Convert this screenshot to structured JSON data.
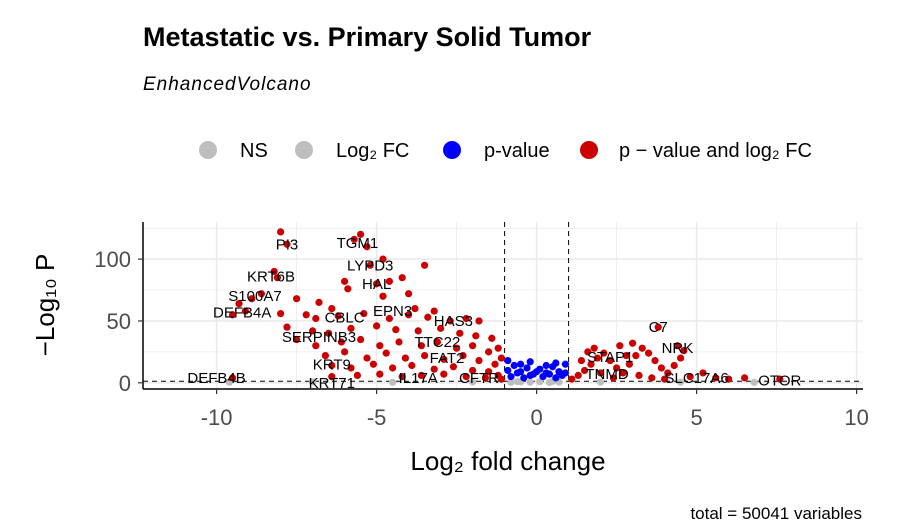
{
  "chart_data": {
    "type": "scatter",
    "title": "Metastatic vs. Primary Solid Tumor",
    "subtitle": "EnhancedVolcano",
    "caption": "total = 50041 variables",
    "xlabel": "Log₂ fold change",
    "ylabel": "−Log₁₀ P",
    "xlim": [
      -12.3,
      10.2
    ],
    "ylim": [
      -5,
      130
    ],
    "x_ticks": [
      "-10",
      "-5",
      "0",
      "5",
      "10"
    ],
    "y_ticks": [
      "0",
      "50",
      "100"
    ],
    "grid": true,
    "fc_cutoff": 1,
    "p_cutoff_line": 1.3,
    "legend_position": "top",
    "legend": [
      {
        "label": "NS",
        "color": "#bebebe"
      },
      {
        "label": "Log₂ FC",
        "color": "#bebebe"
      },
      {
        "label": "p-value",
        "color": "#0000ff"
      },
      {
        "label": "p − value and log₂ FC",
        "color": "#cc0000"
      }
    ],
    "labeled_genes": [
      {
        "name": "PI3",
        "x": -7.8,
        "y": 112
      },
      {
        "name": "TGM1",
        "x": -5.6,
        "y": 113
      },
      {
        "name": "LYPD3",
        "x": -5.2,
        "y": 95
      },
      {
        "name": "KRT6B",
        "x": -8.3,
        "y": 86
      },
      {
        "name": "HAL",
        "x": -5.0,
        "y": 80
      },
      {
        "name": "S100A7",
        "x": -8.8,
        "y": 70
      },
      {
        "name": "DEFB4A",
        "x": -9.2,
        "y": 57
      },
      {
        "name": "CBLC",
        "x": -6.0,
        "y": 53
      },
      {
        "name": "EPN3",
        "x": -4.5,
        "y": 58
      },
      {
        "name": "HAS3",
        "x": -2.6,
        "y": 50
      },
      {
        "name": "SERPINB3",
        "x": -6.8,
        "y": 37
      },
      {
        "name": "TTC22",
        "x": -3.1,
        "y": 33
      },
      {
        "name": "FAT2",
        "x": -2.8,
        "y": 20
      },
      {
        "name": "KRT9",
        "x": -6.4,
        "y": 15
      },
      {
        "name": "DEFB4B",
        "x": -10.0,
        "y": 4
      },
      {
        "name": "KRT71",
        "x": -6.4,
        "y": 0
      },
      {
        "name": "IL17A",
        "x": -3.7,
        "y": 4
      },
      {
        "name": "CFTR",
        "x": -1.8,
        "y": 4
      },
      {
        "name": "C7",
        "x": 3.8,
        "y": 45
      },
      {
        "name": "NRK",
        "x": 4.4,
        "y": 28
      },
      {
        "name": "STAP1",
        "x": 2.3,
        "y": 21
      },
      {
        "name": "TNMD",
        "x": 2.2,
        "y": 7
      },
      {
        "name": "SLC17A6",
        "x": 5.0,
        "y": 4
      },
      {
        "name": "OTOR",
        "x": 7.6,
        "y": 2
      }
    ],
    "series": [
      {
        "name": "p − value and log₂ FC",
        "color": "#cc0000",
        "points": [
          [
            -8.0,
            122
          ],
          [
            -7.8,
            112
          ],
          [
            -5.5,
            120
          ],
          [
            -5.7,
            116
          ],
          [
            -5.3,
            110
          ],
          [
            -5.2,
            95
          ],
          [
            -4.8,
            100
          ],
          [
            -3.5,
            95
          ],
          [
            -8.2,
            90
          ],
          [
            -8.1,
            85
          ],
          [
            -6.0,
            82
          ],
          [
            -5.9,
            76
          ],
          [
            -5.0,
            80
          ],
          [
            -4.6,
            82
          ],
          [
            -4.2,
            85
          ],
          [
            -8.6,
            72
          ],
          [
            -8.9,
            68
          ],
          [
            -9.3,
            64
          ],
          [
            -7.5,
            68
          ],
          [
            -6.8,
            65
          ],
          [
            -6.4,
            60
          ],
          [
            -4.8,
            70
          ],
          [
            -4.0,
            72
          ],
          [
            -3.8,
            60
          ],
          [
            -3.2,
            58
          ],
          [
            -9.5,
            55
          ],
          [
            -9.1,
            58
          ],
          [
            -8.0,
            56
          ],
          [
            -7.2,
            55
          ],
          [
            -6.9,
            52
          ],
          [
            -6.2,
            54
          ],
          [
            -5.4,
            56
          ],
          [
            -4.6,
            52
          ],
          [
            -4.0,
            55
          ],
          [
            -3.4,
            53
          ],
          [
            -2.7,
            50
          ],
          [
            -2.2,
            52
          ],
          [
            -1.8,
            50
          ],
          [
            -7.8,
            45
          ],
          [
            -7.0,
            42
          ],
          [
            -6.5,
            40
          ],
          [
            -5.8,
            44
          ],
          [
            -5.0,
            46
          ],
          [
            -4.4,
            43
          ],
          [
            -3.7,
            42
          ],
          [
            -3.0,
            44
          ],
          [
            -2.4,
            40
          ],
          [
            -1.9,
            38
          ],
          [
            -1.4,
            36
          ],
          [
            -7.5,
            35
          ],
          [
            -6.9,
            30
          ],
          [
            -6.1,
            33
          ],
          [
            -5.5,
            35
          ],
          [
            -4.9,
            30
          ],
          [
            -4.3,
            33
          ],
          [
            -3.6,
            30
          ],
          [
            -3.1,
            33
          ],
          [
            -2.5,
            28
          ],
          [
            -2.0,
            30
          ],
          [
            -1.5,
            25
          ],
          [
            -1.2,
            28
          ],
          [
            -6.6,
            22
          ],
          [
            -6.0,
            25
          ],
          [
            -5.3,
            20
          ],
          [
            -4.7,
            24
          ],
          [
            -4.1,
            20
          ],
          [
            -3.5,
            22
          ],
          [
            -2.9,
            19
          ],
          [
            -2.3,
            22
          ],
          [
            -1.8,
            18
          ],
          [
            -1.3,
            15
          ],
          [
            -1.1,
            20
          ],
          [
            -6.4,
            14
          ],
          [
            -5.8,
            12
          ],
          [
            -5.1,
            15
          ],
          [
            -4.5,
            12
          ],
          [
            -3.9,
            14
          ],
          [
            -3.2,
            11
          ],
          [
            -2.6,
            13
          ],
          [
            -2.0,
            10
          ],
          [
            -1.5,
            9
          ],
          [
            -1.2,
            6
          ],
          [
            -9.5,
            4
          ],
          [
            -6.4,
            5
          ],
          [
            -5.6,
            6
          ],
          [
            -4.9,
            7
          ],
          [
            -4.2,
            5
          ],
          [
            -3.6,
            6
          ],
          [
            -2.9,
            7
          ],
          [
            -2.2,
            5
          ],
          [
            -1.6,
            4
          ],
          [
            -1.1,
            3
          ],
          [
            1.1,
            3
          ],
          [
            1.3,
            6
          ],
          [
            1.5,
            10
          ],
          [
            1.7,
            15
          ],
          [
            1.9,
            20
          ],
          [
            2.1,
            24
          ],
          [
            2.3,
            18
          ],
          [
            2.5,
            12
          ],
          [
            2.7,
            8
          ],
          [
            2.9,
            15
          ],
          [
            3.1,
            22
          ],
          [
            3.3,
            28
          ],
          [
            3.5,
            24
          ],
          [
            3.7,
            18
          ],
          [
            3.9,
            12
          ],
          [
            4.1,
            8
          ],
          [
            4.3,
            14
          ],
          [
            4.5,
            20
          ],
          [
            4.6,
            26
          ],
          [
            3.8,
            45
          ],
          [
            4.4,
            30
          ],
          [
            1.8,
            28
          ],
          [
            2.6,
            30
          ],
          [
            3.0,
            32
          ],
          [
            1.4,
            18
          ],
          [
            2.0,
            8
          ],
          [
            2.4,
            4
          ],
          [
            3.2,
            6
          ],
          [
            3.6,
            4
          ],
          [
            4.0,
            3
          ],
          [
            4.8,
            5
          ],
          [
            5.2,
            8
          ],
          [
            5.6,
            4
          ],
          [
            6.0,
            3
          ],
          [
            6.5,
            4
          ],
          [
            7.6,
            3
          ],
          [
            1.6,
            25
          ],
          [
            2.8,
            22
          ]
        ]
      },
      {
        "name": "p-value",
        "color": "#0000ff",
        "points": [
          [
            -0.9,
            18
          ],
          [
            -0.7,
            14
          ],
          [
            -0.5,
            9
          ],
          [
            -0.3,
            12
          ],
          [
            -0.1,
            7
          ],
          [
            0.1,
            11
          ],
          [
            0.3,
            8
          ],
          [
            0.5,
            13
          ],
          [
            0.7,
            9
          ],
          [
            0.9,
            15
          ],
          [
            -0.8,
            5
          ],
          [
            -0.6,
            8
          ],
          [
            -0.4,
            4
          ],
          [
            -0.2,
            6
          ],
          [
            0.0,
            9
          ],
          [
            0.2,
            5
          ],
          [
            0.4,
            7
          ],
          [
            0.6,
            4
          ],
          [
            0.8,
            6
          ],
          [
            -0.9,
            10
          ],
          [
            0.9,
            8
          ],
          [
            -0.5,
            15
          ],
          [
            0.3,
            14
          ],
          [
            0.6,
            16
          ],
          [
            -0.2,
            17
          ]
        ]
      },
      {
        "name": "NS",
        "color": "#bebebe",
        "points": [
          [
            -0.8,
            0.4
          ],
          [
            -0.5,
            0.8
          ],
          [
            -0.2,
            0.5
          ],
          [
            0.1,
            0.9
          ],
          [
            0.4,
            0.3
          ],
          [
            0.7,
            0.6
          ],
          [
            -0.6,
            1.0
          ],
          [
            0.5,
            1.1
          ]
        ]
      },
      {
        "name": "Log₂ FC",
        "color": "#bebebe",
        "points": [
          [
            -9.6,
            0.5
          ],
          [
            -7.0,
            0.8
          ],
          [
            -4.5,
            0.4
          ],
          [
            -2.0,
            0.7
          ],
          [
            2.0,
            0.6
          ],
          [
            4.5,
            0.5
          ],
          [
            6.8,
            0.3
          ]
        ]
      }
    ]
  }
}
